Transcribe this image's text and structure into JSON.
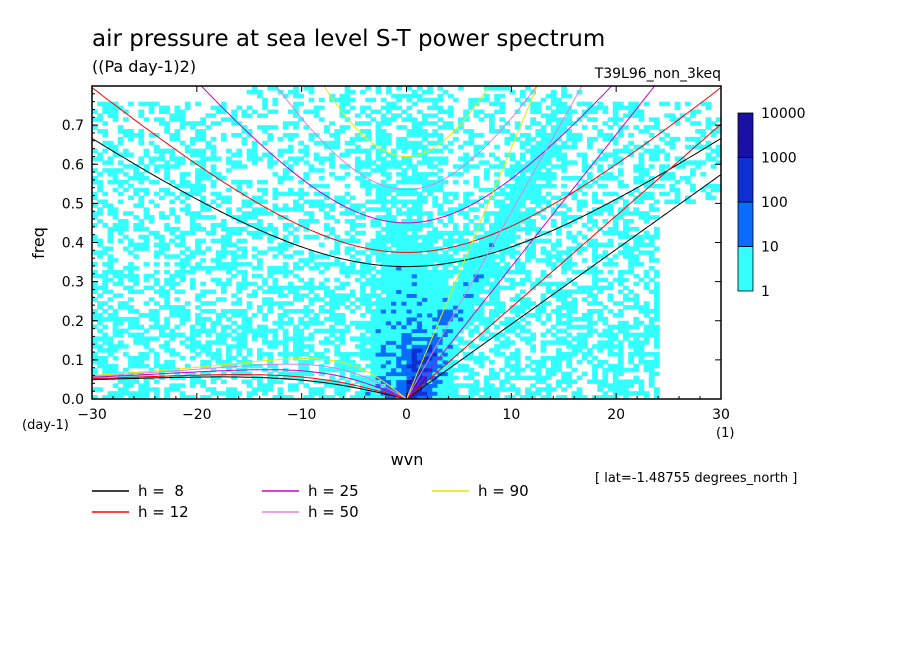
{
  "chart_data": {
    "type": "heatmap",
    "title": "air pressure at sea level S-T power spectrum",
    "subtitle": "((Pa day-1)2)",
    "run_label": "T39L96_non_3keq",
    "xlabel": "wvn",
    "ylabel": "freq",
    "xunit": "(1)",
    "yunit": "(day-1)",
    "xlim": [
      -30,
      30
    ],
    "ylim": [
      0,
      0.8
    ],
    "xticks": [
      -30,
      -20,
      -10,
      0,
      10,
      20,
      30
    ],
    "yticks": [
      0.0,
      0.1,
      0.2,
      0.3,
      0.4,
      0.5,
      0.6,
      0.7
    ],
    "ytick_labels": [
      "0.0",
      "0.1",
      "0.2",
      "0.3",
      "0.4",
      "0.5",
      "0.6",
      "0.7"
    ],
    "colorbar": {
      "levels": [
        "1",
        "10",
        "100",
        "1000",
        "10000"
      ],
      "colors": [
        "#33ffff",
        "#0a6cff",
        "#0d2fd4",
        "#1a10a8"
      ]
    },
    "lat_note": "[ lat=-1.48755 degrees_north ]",
    "dispersion_curves": [
      {
        "label": "h =  8",
        "h": 8,
        "color": "#000000"
      },
      {
        "label": "h = 12",
        "h": 12,
        "color": "#ff0000"
      },
      {
        "label": "h = 25",
        "h": 25,
        "color": "#cc00cc"
      },
      {
        "label": "h = 50",
        "h": 50,
        "color": "#e080e0"
      },
      {
        "label": "h = 90",
        "h": 90,
        "color": "#e8e800"
      }
    ]
  }
}
